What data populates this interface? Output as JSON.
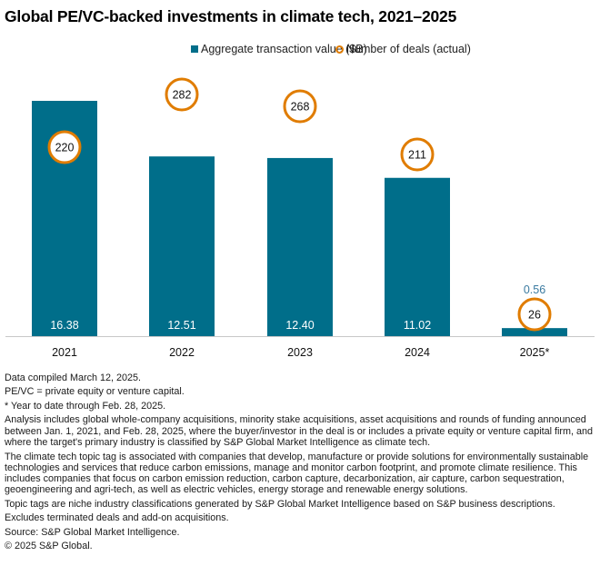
{
  "chart_data": {
    "type": "bar",
    "title": "Global PE/VC-backed investments in climate tech, 2021–2025",
    "categories": [
      "2021",
      "2022",
      "2023",
      "2024",
      "2025*"
    ],
    "series": [
      {
        "name": "Aggregate transaction value ($B)",
        "kind": "bar",
        "color": "#006e8a",
        "values": [
          16.38,
          12.51,
          12.4,
          11.02,
          0.56
        ],
        "labels": [
          "16.38",
          "12.51",
          "12.40",
          "11.02",
          "0.56"
        ]
      },
      {
        "name": "Number of deals (actual)",
        "kind": "marker-circle",
        "color": "#e07c00",
        "values": [
          220,
          282,
          268,
          211,
          26
        ],
        "labels": [
          "220",
          "282",
          "268",
          "211",
          "26"
        ]
      }
    ],
    "legend": {
      "placement": "top-center"
    },
    "xlabel": "",
    "ylabel": "",
    "ylim": [
      0,
      18
    ],
    "deals_ylim": [
      0,
      300
    ],
    "grid": false,
    "y_axis_visible": false
  },
  "notes": [
    "Data compiled March 12, 2025.",
    "PE/VC = private equity or venture capital.",
    "* Year to date through Feb. 28, 2025.",
    "Analysis includes global whole-company acquisitions, minority stake acquisitions, asset acquisitions and rounds of funding announced between Jan. 1, 2021, and Feb. 28, 2025, where the buyer/investor in the deal is or includes a private equity or venture capital firm, and where the target's primary industry is classified by S&P Global Market Intelligence as climate tech.",
    "The climate tech topic tag is associated with companies that develop, manufacture or provide solutions for environmentally sustainable technologies and services that reduce carbon emissions, manage and monitor carbon footprint, and promote climate resilience. This includes companies that focus on carbon emission reduction, carbon capture, decarbonization, air capture, carbon sequestration, geoengineering and agri-tech, as well as electric vehicles, energy storage and renewable energy solutions.",
    "Topic tags are niche industry classifications generated by S&P Global Market Intelligence based on S&P business descriptions.",
    "Excludes terminated deals and add-on acquisitions.",
    "Source: S&P Global Market Intelligence.",
    "© 2025 S&P Global."
  ],
  "colors": {
    "bar": "#006e8a",
    "deals_ring": "#e07c00",
    "small_value_label": "#3a7aa0",
    "axis": "#c8c8c8"
  }
}
